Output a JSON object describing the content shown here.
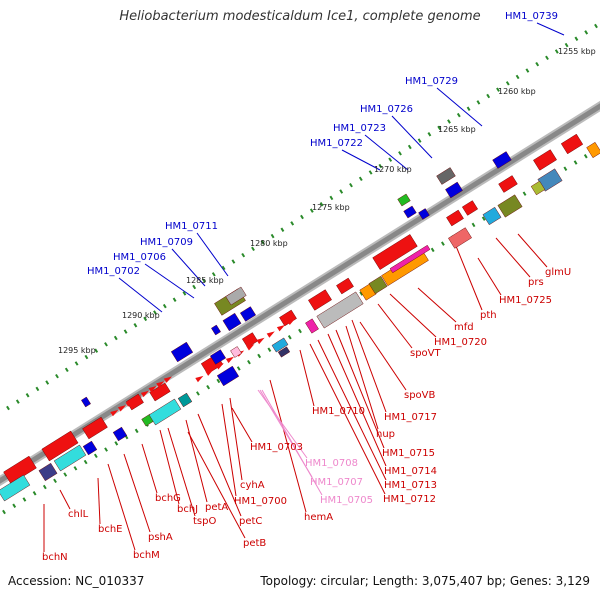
{
  "title": "Heliobacterium modesticaldum Ice1, complete genome",
  "footer": {
    "accession": "Accession: NC_010337",
    "topology": "Topology: circular; Length: 3,075,407 bp; Genes: 3,129"
  },
  "ticks": [
    "1255 kbp",
    "1260 kbp",
    "1265 kbp",
    "1270 kbp",
    "1275 kbp",
    "1280 kbp",
    "1285 kbp",
    "1290 kbp",
    "1295 kbp"
  ],
  "outer_labels": [
    "HM1_0739",
    "HM1_0729",
    "HM1_0726",
    "HM1_0723",
    "HM1_0722",
    "HM1_0711",
    "HM1_0709",
    "HM1_0706",
    "HM1_0702"
  ],
  "inner_labels": [
    "glmU",
    "prs",
    "HM1_0725",
    "pth",
    "mfd",
    "HM1_0720",
    "spoVT",
    "spoVB",
    "HM1_0717",
    "hup",
    "HM1_0715",
    "HM1_0714",
    "HM1_0713",
    "HM1_0712",
    "HM1_0710",
    "HM1_0703",
    "HM1_0700",
    "cyhA",
    "hemA",
    "petA",
    "petC",
    "petB",
    "tspO",
    "bchJ",
    "bchG",
    "pshA",
    "bchM",
    "bchE",
    "chlL",
    "bchN"
  ],
  "pink_labels": [
    "HM1_0708",
    "HM1_0707",
    "HM1_0705"
  ],
  "colors": {
    "backbone": "#888888",
    "tick_dots": "#2a8a2a",
    "gene_red": "#ee1111",
    "gene_blue": "#0000dd",
    "outer_label": "#0000cc",
    "inner_label": "#cc0000",
    "pink_label": "#ee88cc",
    "cyan": "#33dddd",
    "olive": "#778822",
    "orange": "#ff9900",
    "magenta": "#ee22aa"
  }
}
